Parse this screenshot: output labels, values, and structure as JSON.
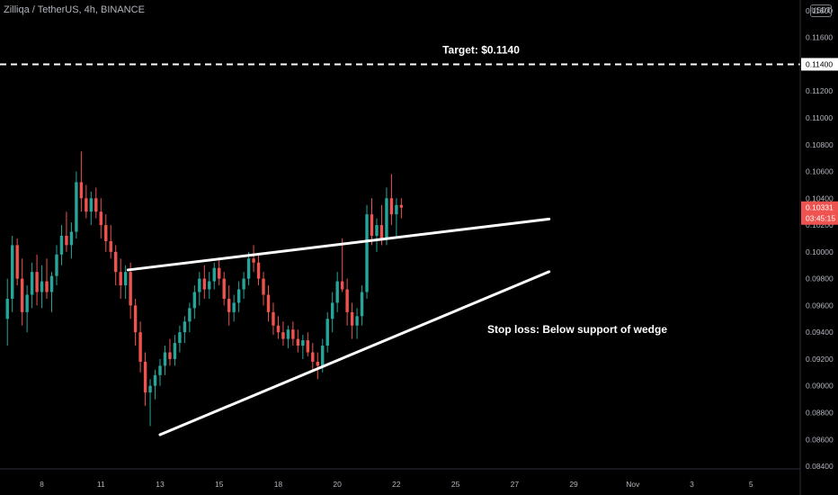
{
  "header": {
    "symbol": "Zilliqa / TetherUS, 4h, BINANCE"
  },
  "currency_button": "USDT",
  "chart_data": {
    "type": "candlestick",
    "title": "Zilliqa / TetherUS, 4h, BINANCE",
    "yaxis": {
      "ticks": [
        "0.11800",
        "0.11600",
        "0.11200",
        "0.11000",
        "0.10800",
        "0.10600",
        "0.10400",
        "0.10200",
        "0.10000",
        "0.09800",
        "0.09600",
        "0.09400",
        "0.09200",
        "0.09000",
        "0.08800",
        "0.08600",
        "0.08400"
      ],
      "ylim": [
        0.0838,
        0.1188
      ]
    },
    "xaxis": {
      "ticks": [
        "8",
        "11",
        "13",
        "15",
        "18",
        "20",
        "22",
        "25",
        "27",
        "29",
        "Nov",
        "3",
        "5"
      ],
      "tick_index": [
        7,
        19,
        31,
        43,
        55,
        67,
        79,
        91,
        103,
        115,
        127,
        139,
        151
      ],
      "xlim": [
        -1.5,
        161
      ]
    },
    "price_tags": {
      "target": "0.11400",
      "last": "0.10331",
      "countdown": "03:45:15"
    },
    "annotations": {
      "target_label": "Target: $0.1140",
      "stop_label": "Stop loss: Below support of wedge"
    },
    "target_level": 0.114,
    "trendlines": [
      {
        "name": "resistance",
        "from": [
          24.5,
          0.09865
        ],
        "to": [
          110,
          0.10245
        ]
      },
      {
        "name": "support",
        "from": [
          31,
          0.08635
        ],
        "to": [
          110,
          0.09852
        ]
      }
    ],
    "colors": {
      "up": "#26a69a",
      "down": "#ef5350",
      "line": "#ffffff",
      "axis": "#2a2e39",
      "text": "#b2b5be"
    },
    "candles": [
      [
        0.095,
        0.098,
        0.093,
        0.0965
      ],
      [
        0.0965,
        0.1012,
        0.0955,
        0.1005
      ],
      [
        0.1005,
        0.101,
        0.0975,
        0.098
      ],
      [
        0.098,
        0.0995,
        0.0945,
        0.0955
      ],
      [
        0.0955,
        0.0975,
        0.094,
        0.0968
      ],
      [
        0.0968,
        0.0992,
        0.0958,
        0.0985
      ],
      [
        0.0985,
        0.0998,
        0.096,
        0.097
      ],
      [
        0.097,
        0.099,
        0.0958,
        0.0978
      ],
      [
        0.0978,
        0.0995,
        0.0965,
        0.097
      ],
      [
        0.097,
        0.0985,
        0.0955,
        0.0982
      ],
      [
        0.0982,
        0.1005,
        0.0975,
        0.0998
      ],
      [
        0.0998,
        0.102,
        0.099,
        0.1012
      ],
      [
        0.1012,
        0.103,
        0.1,
        0.1005
      ],
      [
        0.1005,
        0.1022,
        0.0995,
        0.1015
      ],
      [
        0.1015,
        0.106,
        0.101,
        0.1052
      ],
      [
        0.1052,
        0.1075,
        0.103,
        0.104
      ],
      [
        0.104,
        0.105,
        0.1025,
        0.103
      ],
      [
        0.103,
        0.1045,
        0.102,
        0.104
      ],
      [
        0.104,
        0.1048,
        0.1025,
        0.103
      ],
      [
        0.103,
        0.104,
        0.101,
        0.102
      ],
      [
        0.102,
        0.1028,
        0.1,
        0.1008
      ],
      [
        0.1008,
        0.102,
        0.0995,
        0.1
      ],
      [
        0.1,
        0.1005,
        0.0975,
        0.0985
      ],
      [
        0.0985,
        0.0995,
        0.0965,
        0.0975
      ],
      [
        0.0975,
        0.099,
        0.0965,
        0.0985
      ],
      [
        0.0985,
        0.0992,
        0.095,
        0.096
      ],
      [
        0.096,
        0.0965,
        0.093,
        0.094
      ],
      [
        0.094,
        0.0948,
        0.091,
        0.0918
      ],
      [
        0.0918,
        0.0925,
        0.0885,
        0.0895
      ],
      [
        0.0895,
        0.0905,
        0.087,
        0.09
      ],
      [
        0.09,
        0.0912,
        0.089,
        0.0908
      ],
      [
        0.0908,
        0.092,
        0.09,
        0.0915
      ],
      [
        0.0915,
        0.093,
        0.0908,
        0.0925
      ],
      [
        0.0925,
        0.0935,
        0.0915,
        0.092
      ],
      [
        0.092,
        0.0938,
        0.0915,
        0.0932
      ],
      [
        0.0932,
        0.0945,
        0.0925,
        0.094
      ],
      [
        0.094,
        0.0952,
        0.0932,
        0.0948
      ],
      [
        0.0948,
        0.0962,
        0.094,
        0.0958
      ],
      [
        0.0958,
        0.0975,
        0.095,
        0.097
      ],
      [
        0.097,
        0.0985,
        0.096,
        0.098
      ],
      [
        0.098,
        0.099,
        0.0965,
        0.0972
      ],
      [
        0.0972,
        0.0985,
        0.0965,
        0.0978
      ],
      [
        0.0978,
        0.0992,
        0.0972,
        0.0988
      ],
      [
        0.0988,
        0.0995,
        0.0975,
        0.098
      ],
      [
        0.098,
        0.0985,
        0.096,
        0.0965
      ],
      [
        0.0965,
        0.0975,
        0.0945,
        0.0955
      ],
      [
        0.0955,
        0.0968,
        0.0948,
        0.0962
      ],
      [
        0.0962,
        0.0978,
        0.0955,
        0.0972
      ],
      [
        0.0972,
        0.0985,
        0.0965,
        0.098
      ],
      [
        0.098,
        0.1,
        0.0975,
        0.0995
      ],
      [
        0.0995,
        0.1005,
        0.0985,
        0.0992
      ],
      [
        0.0992,
        0.0998,
        0.0975,
        0.098
      ],
      [
        0.098,
        0.0985,
        0.096,
        0.0968
      ],
      [
        0.0968,
        0.0975,
        0.0948,
        0.0955
      ],
      [
        0.0955,
        0.0962,
        0.0938,
        0.0945
      ],
      [
        0.0945,
        0.0952,
        0.0935,
        0.094
      ],
      [
        0.094,
        0.0948,
        0.093,
        0.0935
      ],
      [
        0.0935,
        0.0945,
        0.0928,
        0.0942
      ],
      [
        0.0942,
        0.0948,
        0.093,
        0.0935
      ],
      [
        0.0935,
        0.0942,
        0.0925,
        0.093
      ],
      [
        0.093,
        0.0938,
        0.092,
        0.0934
      ],
      [
        0.0934,
        0.094,
        0.0922,
        0.0925
      ],
      [
        0.0925,
        0.0932,
        0.0912,
        0.0918
      ],
      [
        0.0918,
        0.0925,
        0.0905,
        0.0915
      ],
      [
        0.0915,
        0.0935,
        0.091,
        0.093
      ],
      [
        0.093,
        0.0955,
        0.0925,
        0.095
      ],
      [
        0.095,
        0.097,
        0.094,
        0.0962
      ],
      [
        0.0962,
        0.0985,
        0.0955,
        0.0978
      ],
      [
        0.0978,
        0.101,
        0.097,
        0.0972
      ],
      [
        0.0972,
        0.098,
        0.0945,
        0.0955
      ],
      [
        0.0955,
        0.0962,
        0.0935,
        0.0945
      ],
      [
        0.0945,
        0.0958,
        0.0935,
        0.0952
      ],
      [
        0.0952,
        0.0975,
        0.0945,
        0.097
      ],
      [
        0.097,
        0.1035,
        0.0965,
        0.1028
      ],
      [
        0.1028,
        0.104,
        0.1005,
        0.1012
      ],
      [
        0.1012,
        0.1025,
        0.1,
        0.102
      ],
      [
        0.102,
        0.1035,
        0.1005,
        0.101
      ],
      [
        0.101,
        0.1048,
        0.1005,
        0.104
      ],
      [
        0.104,
        0.1058,
        0.102,
        0.1028
      ],
      [
        0.1028,
        0.104,
        0.101,
        0.1035
      ],
      [
        0.1035,
        0.104,
        0.1025,
        0.1033
      ]
    ]
  }
}
